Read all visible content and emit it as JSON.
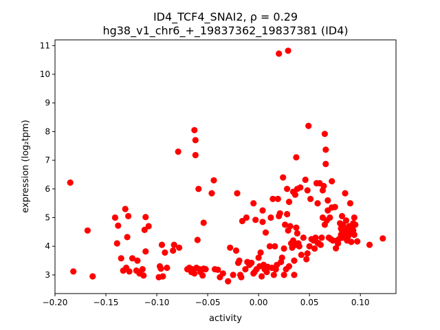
{
  "chart_data": {
    "type": "scatter",
    "title_line1": "ID4_TCF4_SNAI2, ρ = 0.29",
    "title_line2": "hg38_v1_chr6_+_19837362_19837381 (ID4)",
    "xlabel": "activity",
    "ylabel": "expression (log₂tpm)",
    "xlim": [
      -0.2,
      0.135
    ],
    "ylim": [
      2.35,
      11.2
    ],
    "xticks": [
      -0.2,
      -0.15,
      -0.1,
      -0.05,
      0.0,
      0.05,
      0.1
    ],
    "xtick_labels": [
      "−0.20",
      "−0.15",
      "−0.10",
      "−0.05",
      "0.00",
      "0.05",
      "0.10"
    ],
    "yticks": [
      3,
      4,
      5,
      6,
      7,
      8,
      9,
      10,
      11
    ],
    "ytick_labels": [
      "3",
      "4",
      "5",
      "6",
      "7",
      "8",
      "9",
      "10",
      "11"
    ],
    "marker_color": "#ff0000",
    "points": [
      [
        -0.185,
        6.22
      ],
      [
        -0.182,
        3.12
      ],
      [
        -0.168,
        4.55
      ],
      [
        -0.163,
        2.95
      ],
      [
        -0.141,
        5.0
      ],
      [
        -0.139,
        4.1
      ],
      [
        -0.138,
        4.72
      ],
      [
        -0.135,
        3.58
      ],
      [
        -0.133,
        3.15
      ],
      [
        -0.131,
        5.3
      ],
      [
        -0.13,
        3.25
      ],
      [
        -0.129,
        4.32
      ],
      [
        -0.128,
        5.05
      ],
      [
        -0.127,
        3.12
      ],
      [
        -0.124,
        3.58
      ],
      [
        -0.12,
        3.15
      ],
      [
        -0.119,
        3.5
      ],
      [
        -0.117,
        3.05
      ],
      [
        -0.114,
        3.2
      ],
      [
        -0.113,
        2.98
      ],
      [
        -0.112,
        4.57
      ],
      [
        -0.111,
        3.82
      ],
      [
        -0.111,
        5.02
      ],
      [
        -0.108,
        4.7
      ],
      [
        -0.098,
        2.92
      ],
      [
        -0.097,
        3.3
      ],
      [
        -0.096,
        3.22
      ],
      [
        -0.095,
        4.05
      ],
      [
        -0.094,
        2.95
      ],
      [
        -0.092,
        3.78
      ],
      [
        -0.09,
        3.25
      ],
      [
        -0.084,
        3.85
      ],
      [
        -0.083,
        4.05
      ],
      [
        -0.079,
        7.3
      ],
      [
        -0.078,
        3.95
      ],
      [
        -0.07,
        3.2
      ],
      [
        -0.068,
        3.25
      ],
      [
        -0.066,
        3.1
      ],
      [
        -0.065,
        3.2
      ],
      [
        -0.063,
        3.05
      ],
      [
        -0.063,
        8.05
      ],
      [
        -0.062,
        7.7
      ],
      [
        -0.062,
        7.18
      ],
      [
        -0.061,
        3.25
      ],
      [
        -0.06,
        4.22
      ],
      [
        -0.059,
        6.0
      ],
      [
        -0.058,
        3.2
      ],
      [
        -0.057,
        3.1
      ],
      [
        -0.055,
        2.98
      ],
      [
        -0.054,
        4.82
      ],
      [
        -0.054,
        3.22
      ],
      [
        -0.052,
        3.2
      ],
      [
        -0.046,
        5.85
      ],
      [
        -0.044,
        6.3
      ],
      [
        -0.043,
        3.2
      ],
      [
        -0.04,
        3.18
      ],
      [
        -0.038,
        2.92
      ],
      [
        -0.035,
        3.05
      ],
      [
        -0.03,
        2.78
      ],
      [
        -0.028,
        3.95
      ],
      [
        -0.025,
        3.0
      ],
      [
        -0.022,
        3.85
      ],
      [
        -0.021,
        5.85
      ],
      [
        -0.02,
        3.42
      ],
      [
        -0.019,
        3.5
      ],
      [
        -0.018,
        3.0
      ],
      [
        -0.017,
        2.92
      ],
      [
        -0.016,
        4.88
      ],
      [
        -0.013,
        3.2
      ],
      [
        -0.012,
        5.0
      ],
      [
        -0.011,
        3.45
      ],
      [
        -0.009,
        3.35
      ],
      [
        -0.007,
        3.42
      ],
      [
        -0.005,
        3.05
      ],
      [
        -0.005,
        5.5
      ],
      [
        -0.004,
        3.1
      ],
      [
        -0.003,
        4.92
      ],
      [
        -0.002,
        3.2
      ],
      [
        0.0,
        3.6
      ],
      [
        0.001,
        3.3
      ],
      [
        0.002,
        3.78
      ],
      [
        0.003,
        2.95
      ],
      [
        0.004,
        4.85
      ],
      [
        0.004,
        5.25
      ],
      [
        0.005,
        3.35
      ],
      [
        0.006,
        3.2
      ],
      [
        0.007,
        4.48
      ],
      [
        0.008,
        3.1
      ],
      [
        0.009,
        3.28
      ],
      [
        0.011,
        4.0
      ],
      [
        0.012,
        5.0
      ],
      [
        0.013,
        3.25
      ],
      [
        0.014,
        5.65
      ],
      [
        0.015,
        3.0
      ],
      [
        0.016,
        4.0
      ],
      [
        0.017,
        3.2
      ],
      [
        0.018,
        3.35
      ],
      [
        0.019,
        5.65
      ],
      [
        0.02,
        5.05
      ],
      [
        0.02,
        10.72
      ],
      [
        0.021,
        5.15
      ],
      [
        0.022,
        3.45
      ],
      [
        0.023,
        3.6
      ],
      [
        0.024,
        6.4
      ],
      [
        0.025,
        3.92
      ],
      [
        0.025,
        3.0
      ],
      [
        0.026,
        4.75
      ],
      [
        0.027,
        3.2
      ],
      [
        0.028,
        5.12
      ],
      [
        0.028,
        6.0
      ],
      [
        0.029,
        4.55
      ],
      [
        0.029,
        10.82
      ],
      [
        0.03,
        5.55
      ],
      [
        0.03,
        3.3
      ],
      [
        0.031,
        4.7
      ],
      [
        0.032,
        4.1
      ],
      [
        0.033,
        3.95
      ],
      [
        0.034,
        4.2
      ],
      [
        0.034,
        5.9
      ],
      [
        0.035,
        3.0
      ],
      [
        0.035,
        3.5
      ],
      [
        0.036,
        4.05
      ],
      [
        0.036,
        5.8
      ],
      [
        0.037,
        7.1
      ],
      [
        0.037,
        4.65
      ],
      [
        0.038,
        4.45
      ],
      [
        0.038,
        6.0
      ],
      [
        0.039,
        4.1
      ],
      [
        0.04,
        4.0
      ],
      [
        0.041,
        6.05
      ],
      [
        0.042,
        3.7
      ],
      [
        0.044,
        4.3
      ],
      [
        0.046,
        6.32
      ],
      [
        0.047,
        3.55
      ],
      [
        0.048,
        3.75
      ],
      [
        0.048,
        5.95
      ],
      [
        0.049,
        8.2
      ],
      [
        0.05,
        4.0
      ],
      [
        0.051,
        5.65
      ],
      [
        0.052,
        4.25
      ],
      [
        0.054,
        4.2
      ],
      [
        0.055,
        3.92
      ],
      [
        0.056,
        4.3
      ],
      [
        0.057,
        6.2
      ],
      [
        0.058,
        5.5
      ],
      [
        0.058,
        4.12
      ],
      [
        0.059,
        4.1
      ],
      [
        0.06,
        6.2
      ],
      [
        0.061,
        4.05
      ],
      [
        0.062,
        4.3
      ],
      [
        0.063,
        5.95
      ],
      [
        0.063,
        5.0
      ],
      [
        0.064,
        6.1
      ],
      [
        0.065,
        4.75
      ],
      [
        0.065,
        7.92
      ],
      [
        0.066,
        7.37
      ],
      [
        0.066,
        6.87
      ],
      [
        0.067,
        4.9
      ],
      [
        0.068,
        5.6
      ],
      [
        0.068,
        5.25
      ],
      [
        0.069,
        4.3
      ],
      [
        0.07,
        5.0
      ],
      [
        0.071,
        4.25
      ],
      [
        0.072,
        5.35
      ],
      [
        0.072,
        6.27
      ],
      [
        0.073,
        4.2
      ],
      [
        0.075,
        5.37
      ],
      [
        0.076,
        3.93
      ],
      [
        0.077,
        4.2
      ],
      [
        0.078,
        4.1
      ],
      [
        0.079,
        4.25
      ],
      [
        0.08,
        4.8
      ],
      [
        0.081,
        4.62
      ],
      [
        0.081,
        4.4
      ],
      [
        0.082,
        4.55
      ],
      [
        0.082,
        5.05
      ],
      [
        0.083,
        4.3
      ],
      [
        0.083,
        4.75
      ],
      [
        0.084,
        4.45
      ],
      [
        0.085,
        4.5
      ],
      [
        0.085,
        5.85
      ],
      [
        0.086,
        4.9
      ],
      [
        0.087,
        4.6
      ],
      [
        0.087,
        4.2
      ],
      [
        0.088,
        4.35
      ],
      [
        0.089,
        4.7
      ],
      [
        0.09,
        4.45
      ],
      [
        0.09,
        5.5
      ],
      [
        0.091,
        4.15
      ],
      [
        0.092,
        4.65
      ],
      [
        0.093,
        4.8
      ],
      [
        0.093,
        4.55
      ],
      [
        0.094,
        4.4
      ],
      [
        0.094,
        5.0
      ],
      [
        0.095,
        4.75
      ],
      [
        0.097,
        4.17
      ],
      [
        0.109,
        4.05
      ],
      [
        0.122,
        4.27
      ]
    ]
  }
}
